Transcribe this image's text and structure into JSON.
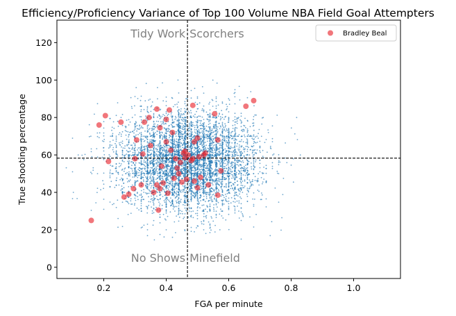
{
  "chart_data": {
    "type": "scatter",
    "title": "Efficiency/Proficiency Variance of Top 100 Volume NBA Field Goal Attempters",
    "xlabel": "FGA per minute",
    "ylabel": "True shooting percentage",
    "xlim": [
      0.05,
      1.15
    ],
    "ylim": [
      -6,
      132
    ],
    "x_ticks": [
      "0.2",
      "0.4",
      "0.6",
      "0.8",
      "1.0"
    ],
    "y_ticks": [
      "0",
      "20",
      "40",
      "60",
      "80",
      "100",
      "120"
    ],
    "grid": false,
    "legend_position": "top-right",
    "reference_lines": {
      "x": 0.468,
      "y": 58.3
    },
    "quadrant_labels": {
      "top_left": "Tidy Work",
      "top_right": "Scorchers",
      "bottom_left": "No Shows",
      "bottom_right": "Minefield"
    },
    "background_series": {
      "color": "#1f77b4",
      "point_count": 6000,
      "x_center": 0.47,
      "y_center": 57
    },
    "series": [
      {
        "name": "Bradley Beal",
        "color": "#e8222a",
        "points": [
          [
            0.16,
            25
          ],
          [
            0.185,
            76
          ],
          [
            0.205,
            81
          ],
          [
            0.215,
            56.5
          ],
          [
            0.255,
            77.5
          ],
          [
            0.265,
            37.5
          ],
          [
            0.28,
            39
          ],
          [
            0.295,
            42
          ],
          [
            0.3,
            58
          ],
          [
            0.305,
            68
          ],
          [
            0.32,
            44
          ],
          [
            0.325,
            60.5
          ],
          [
            0.33,
            77.5
          ],
          [
            0.345,
            80
          ],
          [
            0.35,
            65
          ],
          [
            0.36,
            40
          ],
          [
            0.37,
            84.5
          ],
          [
            0.37,
            44
          ],
          [
            0.375,
            30.5
          ],
          [
            0.38,
            42
          ],
          [
            0.38,
            74.5
          ],
          [
            0.385,
            54
          ],
          [
            0.39,
            45
          ],
          [
            0.4,
            67
          ],
          [
            0.4,
            79
          ],
          [
            0.405,
            39.5
          ],
          [
            0.41,
            84
          ],
          [
            0.415,
            62.5
          ],
          [
            0.42,
            72
          ],
          [
            0.425,
            47.5
          ],
          [
            0.43,
            58
          ],
          [
            0.435,
            53
          ],
          [
            0.44,
            50
          ],
          [
            0.445,
            56
          ],
          [
            0.45,
            45.5
          ],
          [
            0.455,
            61
          ],
          [
            0.46,
            58.5
          ],
          [
            0.465,
            47
          ],
          [
            0.47,
            60
          ],
          [
            0.48,
            57
          ],
          [
            0.485,
            86.5
          ],
          [
            0.49,
            46
          ],
          [
            0.49,
            67
          ],
          [
            0.5,
            42.5
          ],
          [
            0.5,
            69
          ],
          [
            0.505,
            59
          ],
          [
            0.51,
            48
          ],
          [
            0.52,
            60
          ],
          [
            0.525,
            61
          ],
          [
            0.535,
            44
          ],
          [
            0.555,
            82
          ],
          [
            0.565,
            68
          ],
          [
            0.565,
            38.5
          ],
          [
            0.575,
            51.5
          ],
          [
            0.655,
            86
          ],
          [
            0.68,
            89
          ],
          [
            0.485,
            58
          ],
          [
            0.46,
            62
          ]
        ]
      }
    ]
  }
}
